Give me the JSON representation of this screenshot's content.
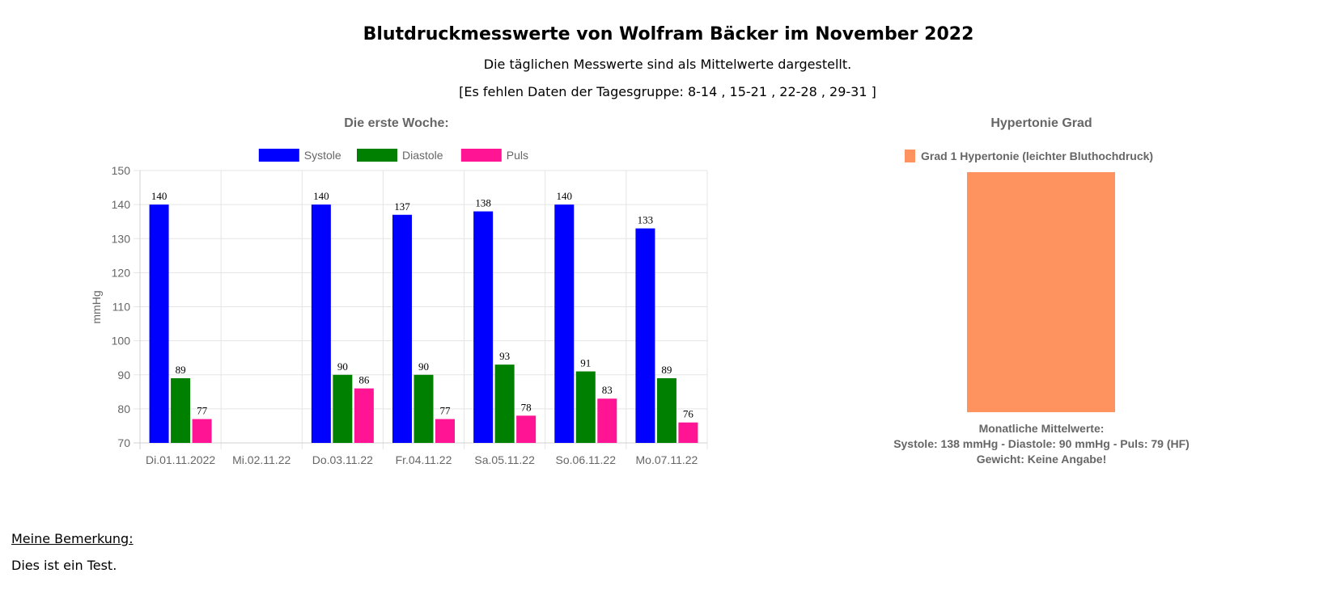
{
  "header": {
    "title": "Blutdruckmesswerte von Wolfram Bäcker im November 2022",
    "subtitle": "Die täglichen Messwerte sind als Mittelwerte dargestellt.",
    "missing": "[Es fehlen Daten der Tagesgruppe: 8-14 , 15-21 , 22-28 , 29-31 ]"
  },
  "chart_data": [
    {
      "type": "bar",
      "title": "Die erste Woche:",
      "xlabel": "",
      "ylabel": "mmHg",
      "ylim": [
        70,
        150
      ],
      "yticks": [
        150,
        140,
        130,
        120,
        110,
        100,
        90,
        80,
        70
      ],
      "grid": true,
      "legend_position": "top",
      "categories": [
        "Di.01.11.2022",
        "Mi.02.11.22",
        "Do.03.11.22",
        "Fr.04.11.22",
        "Sa.05.11.22",
        "So.06.11.22",
        "Mo.07.11.22"
      ],
      "series": [
        {
          "name": "Systole",
          "color": "#0000ff",
          "values": [
            140,
            null,
            140,
            137,
            138,
            140,
            133
          ]
        },
        {
          "name": "Diastole",
          "color": "#008000",
          "values": [
            89,
            null,
            90,
            90,
            93,
            91,
            89
          ]
        },
        {
          "name": "Puls",
          "color": "#ff1493",
          "values": [
            77,
            null,
            86,
            77,
            78,
            83,
            76
          ]
        }
      ]
    },
    {
      "type": "bar",
      "title": "Hypertonie Grad",
      "legend_position": "top",
      "series": [
        {
          "name": "Grad 1 Hypertonie (leichter Bluthochdruck)",
          "color": "#fe9360",
          "values": [
            1
          ]
        }
      ],
      "footer": {
        "line1": "Monatliche Mittelwerte:",
        "line2": "Systole: 138 mmHg - Diastole: 90 mmHg - Puls: 79 (HF)",
        "line3": "Gewicht: Keine Angabe!"
      }
    }
  ],
  "remark": {
    "label": "Meine Bemerkung:",
    "text": "Dies ist ein Test."
  },
  "colors": {
    "axis_text": "#666666",
    "grid": "#e5e5e5"
  }
}
